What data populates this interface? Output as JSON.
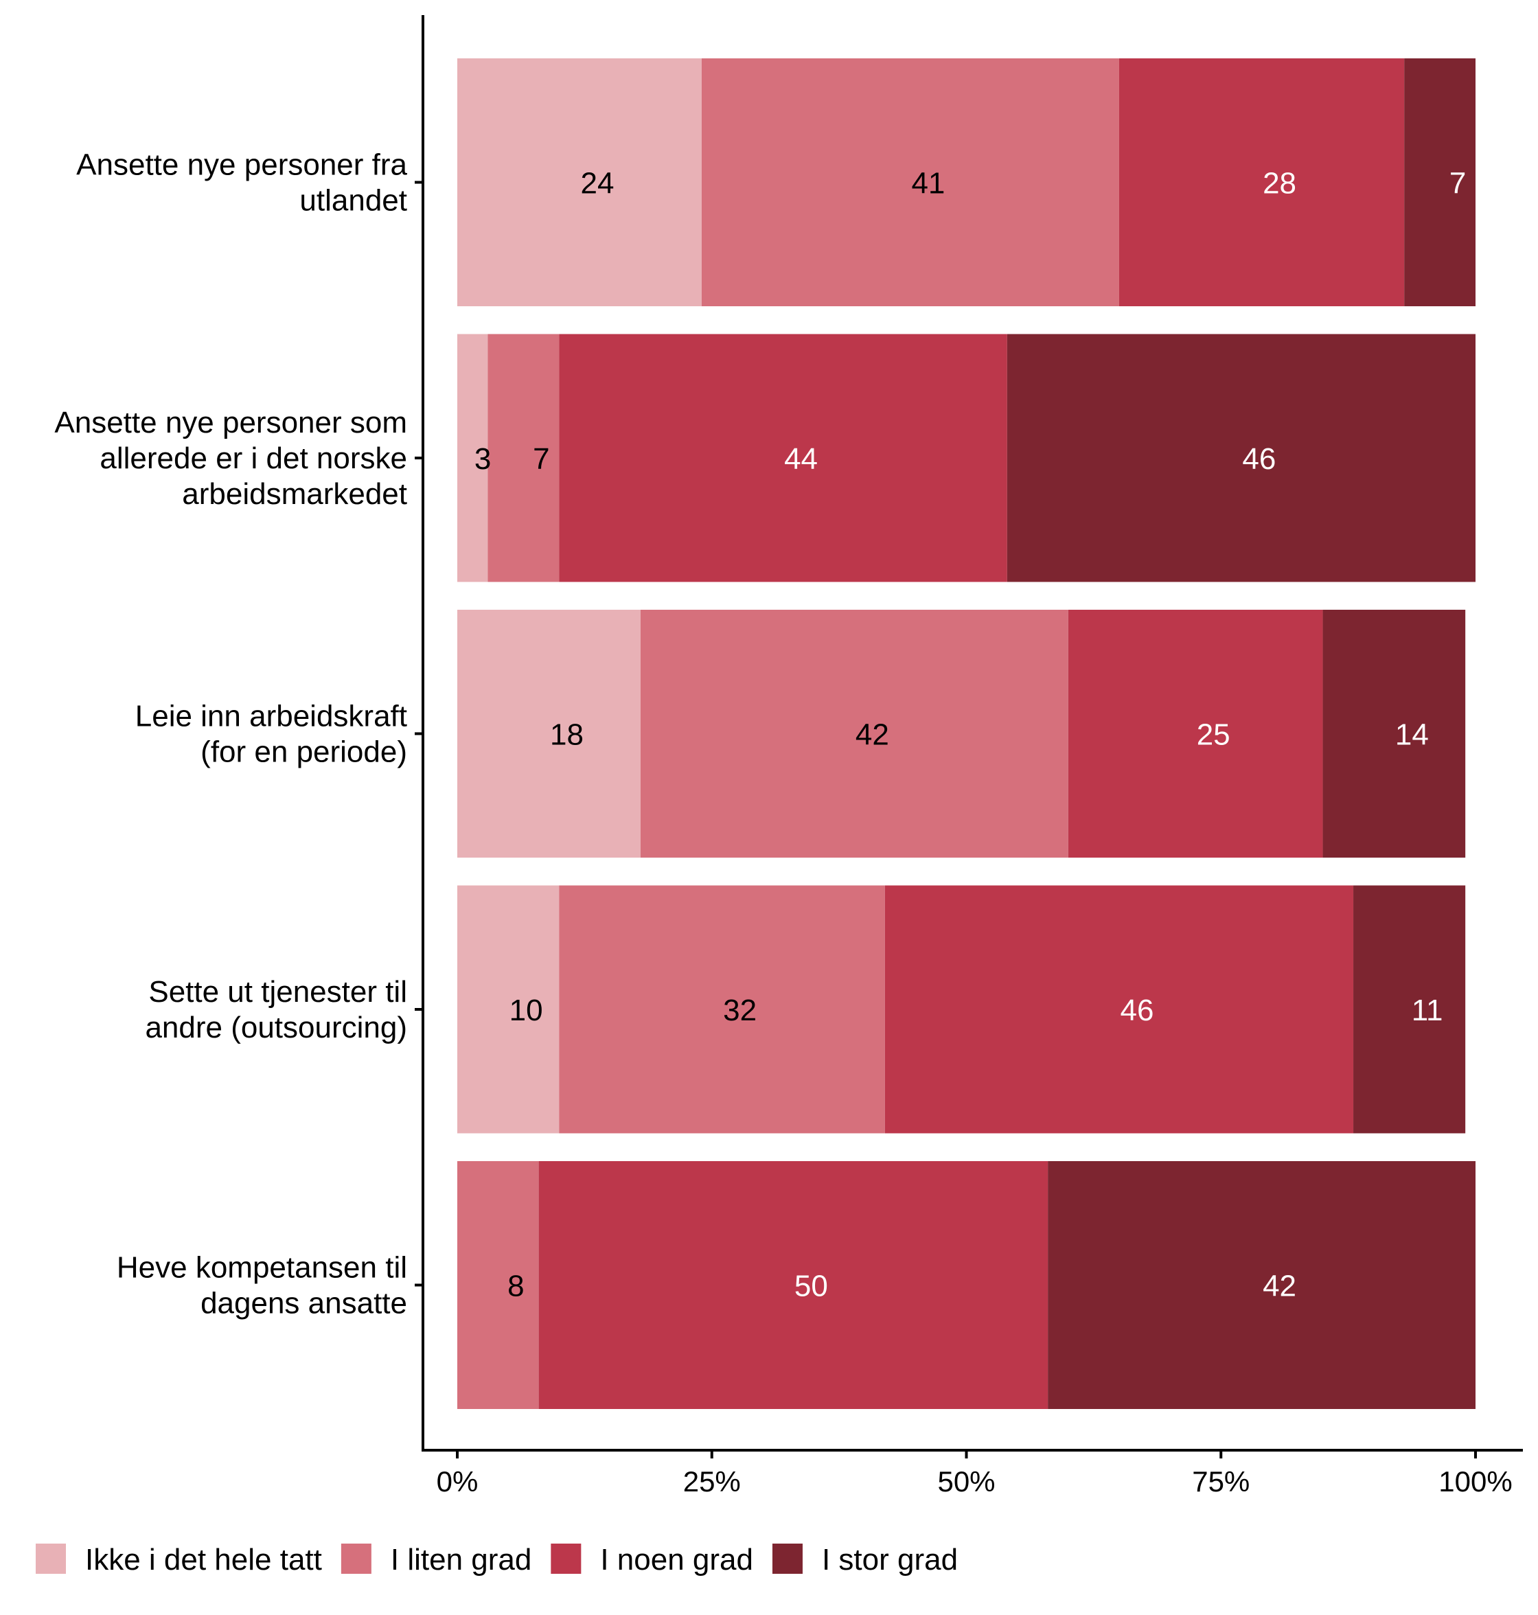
{
  "chart_data": {
    "type": "bar",
    "orientation": "horizontal",
    "stacked": "percent",
    "title": "",
    "xlabel": "",
    "ylabel": "",
    "xlim": [
      0,
      100
    ],
    "x_ticks": [
      "0%",
      "25%",
      "50%",
      "75%",
      "100%"
    ],
    "x_tick_values": [
      0,
      25,
      50,
      75,
      100
    ],
    "grid": false,
    "legend_position": "bottom-left",
    "categories": [
      [
        "Ansette nye personer fra",
        "utlandet"
      ],
      [
        "Ansette nye personer som",
        "allerede er i det norske",
        "arbeidsmarkedet"
      ],
      [
        "Leie inn arbeidskraft",
        "(for en periode)"
      ],
      [
        "Sette ut tjenester til",
        "andre (outsourcing)"
      ],
      [
        "Heve kompetansen til",
        "dagens ansatte"
      ]
    ],
    "series": [
      {
        "name": "Ikke i det hele tatt",
        "color": "#E8B1B6",
        "label_color": "#000000",
        "values": [
          24,
          3,
          18,
          10,
          0
        ]
      },
      {
        "name": "I liten grad",
        "color": "#D6707C",
        "label_color": "#000000",
        "values": [
          41,
          7,
          42,
          32,
          8
        ]
      },
      {
        "name": "I noen grad",
        "color": "#BC374B",
        "label_color": "#FFFFFF",
        "values": [
          28,
          44,
          25,
          46,
          50
        ]
      },
      {
        "name": "I stor grad",
        "color": "#7D2530",
        "label_color": "#FFFFFF",
        "values": [
          7,
          46,
          14,
          11,
          42
        ]
      }
    ]
  }
}
